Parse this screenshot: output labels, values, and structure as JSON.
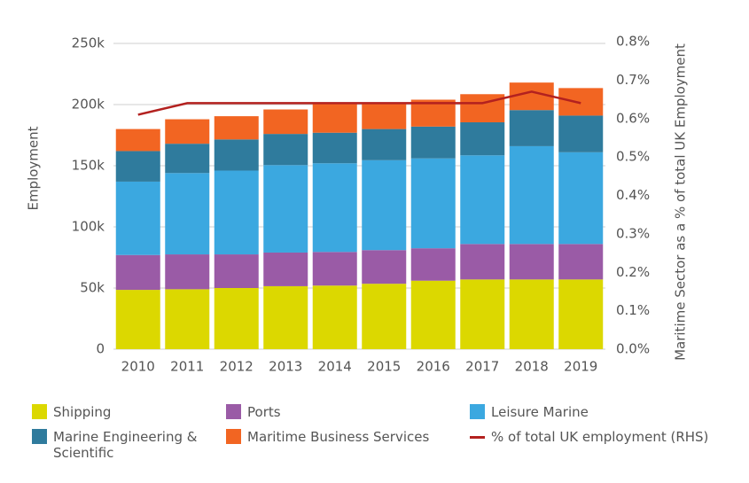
{
  "chart_data": {
    "type": "bar",
    "y_label": "Employment",
    "y2_label": "Maritime Sector as a % of total UK Employment",
    "categories": [
      "2010",
      "2011",
      "2012",
      "2013",
      "2014",
      "2015",
      "2016",
      "2017",
      "2018",
      "2019"
    ],
    "stacked": true,
    "series": [
      {
        "name": "Shipping",
        "color": "#dcd800",
        "values": [
          48500,
          49000,
          50000,
          51500,
          52000,
          53500,
          56000,
          57000,
          57000,
          57000
        ]
      },
      {
        "name": "Ports",
        "color": "#9a5ba6",
        "values": [
          28500,
          28500,
          27500,
          27500,
          27500,
          27500,
          26500,
          29000,
          29000,
          29000
        ]
      },
      {
        "name": "Leisure Marine",
        "color": "#3ba8e0",
        "values": [
          60000,
          66500,
          68500,
          71500,
          72500,
          73500,
          73500,
          72500,
          80000,
          75000
        ]
      },
      {
        "name": "Marine Engineering & Scientific",
        "color": "#2f7b9d",
        "values": [
          25000,
          24000,
          25500,
          25500,
          25000,
          25500,
          26000,
          27000,
          29500,
          30000
        ]
      },
      {
        "name": "Maritime Business Services",
        "color": "#f26522",
        "values": [
          18000,
          20000,
          19000,
          20000,
          23500,
          20500,
          22000,
          23000,
          22500,
          22500
        ]
      },
      {
        "name": "% of total UK employment (RHS)",
        "color": "#b3211f",
        "type": "line",
        "axis": "y2",
        "values": [
          0.61,
          0.64,
          0.64,
          0.64,
          0.64,
          0.64,
          0.64,
          0.64,
          0.67,
          0.64
        ]
      }
    ],
    "ylim": [
      0,
      250000
    ],
    "yticks": [
      0,
      {
        "value": 50000,
        "label": "50k"
      },
      {
        "value": 100000,
        "label": "100k"
      },
      {
        "value": 150000,
        "label": "150k"
      },
      {
        "value": 200000,
        "label": "200k"
      },
      {
        "value": 250000,
        "label": "250k"
      }
    ],
    "y2lim": [
      0,
      0.8
    ],
    "y2ticks": [
      {
        "value": 0,
        "label": "0.0%"
      },
      {
        "value": 0.1,
        "label": "0.1%"
      },
      {
        "value": 0.2,
        "label": "0.2%"
      },
      {
        "value": 0.3,
        "label": "0.3%"
      },
      {
        "value": 0.4,
        "label": "0.4%"
      },
      {
        "value": 0.5,
        "label": "0.5%"
      },
      {
        "value": 0.6,
        "label": "0.6%"
      },
      {
        "value": 0.7,
        "label": "0.7%"
      },
      {
        "value": 0.8,
        "label": "0.8%"
      }
    ],
    "grid": true,
    "legend": "bottom"
  }
}
